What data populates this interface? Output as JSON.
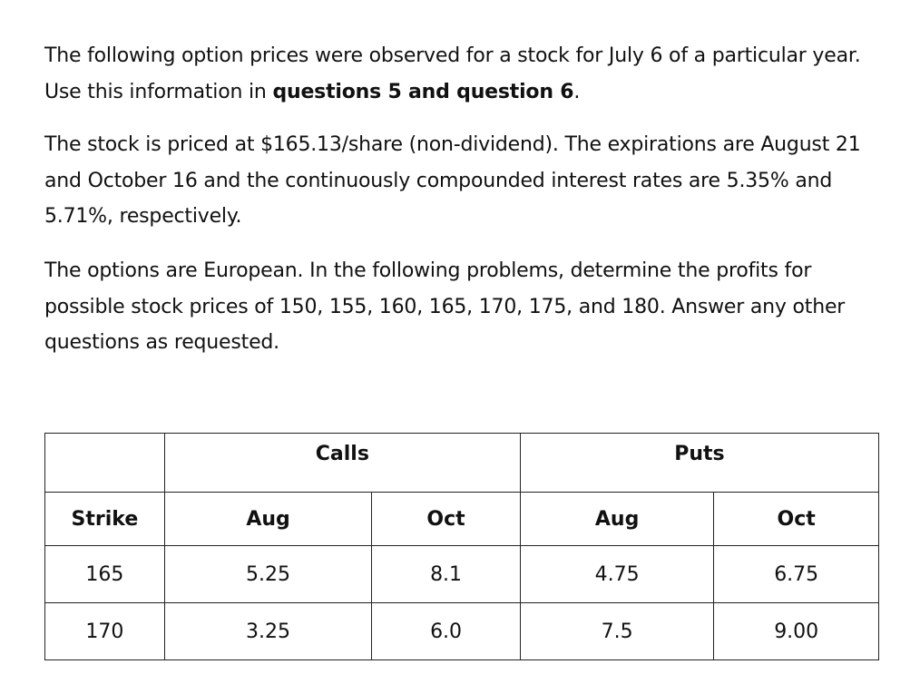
{
  "intro": {
    "p1_text": "The following option prices were observed for a stock for July 6 of a particular year. Use this information in ",
    "p1_bold": "questions 5 and question 6",
    "p1_end": ".",
    "p2_text": "The stock is priced at $165.13/share (non-dividend). The expirations are August 21 and October 16 and the continuously compounded interest rates are 5.35% and 5.71%, respectively.",
    "p3_text": "The options are European. In the following problems, determine the profits for possible stock prices of 150, 155, 160, 165, 170, 175, and 180.  Answer any other questions as requested."
  },
  "table": {
    "group_headers": {
      "calls": "Calls",
      "puts": "Puts"
    },
    "columns": [
      "Strike",
      "Aug",
      "Oct",
      "Aug",
      "Oct"
    ],
    "rows": [
      [
        "165",
        "5.25",
        "8.1",
        "4.75",
        "6.75"
      ],
      [
        "170",
        "3.25",
        "6.0",
        "7.5",
        "9.00"
      ]
    ]
  }
}
